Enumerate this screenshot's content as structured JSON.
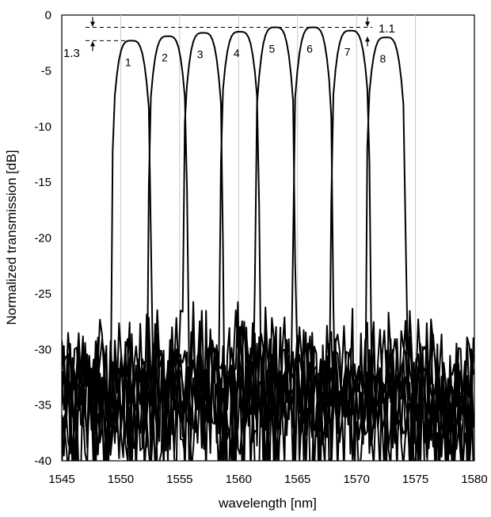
{
  "chart_data": {
    "type": "line",
    "title": "",
    "xlabel": "wavelength [nm]",
    "ylabel": "Normalized transmission [dB]",
    "xlim": [
      1545,
      1580
    ],
    "ylim": [
      -40,
      0
    ],
    "xticks": [
      1545,
      1550,
      1555,
      1560,
      1565,
      1570,
      1575,
      1580
    ],
    "yticks": [
      0,
      -5,
      -10,
      -15,
      -20,
      -25,
      -30,
      -35,
      -40
    ],
    "grid": "vertical",
    "legend": "none",
    "line_color": "#000000",
    "grid_color": "#c8c8c8",
    "series": [
      {
        "center": 1550.9,
        "peak": -2.3,
        "channel_label": "1"
      },
      {
        "center": 1554.0,
        "peak": -1.9,
        "channel_label": "2"
      },
      {
        "center": 1557.0,
        "peak": -1.6,
        "channel_label": "3"
      },
      {
        "center": 1560.1,
        "peak": -1.5,
        "channel_label": "4"
      },
      {
        "center": 1563.1,
        "peak": -1.1,
        "channel_label": "5"
      },
      {
        "center": 1566.3,
        "peak": -1.1,
        "channel_label": "6"
      },
      {
        "center": 1569.5,
        "peak": -1.4,
        "channel_label": "7"
      },
      {
        "center": 1572.5,
        "peak": -2.0,
        "channel_label": "8"
      }
    ],
    "annotations": {
      "left_value": "1.3",
      "right_value": "1.1"
    }
  }
}
